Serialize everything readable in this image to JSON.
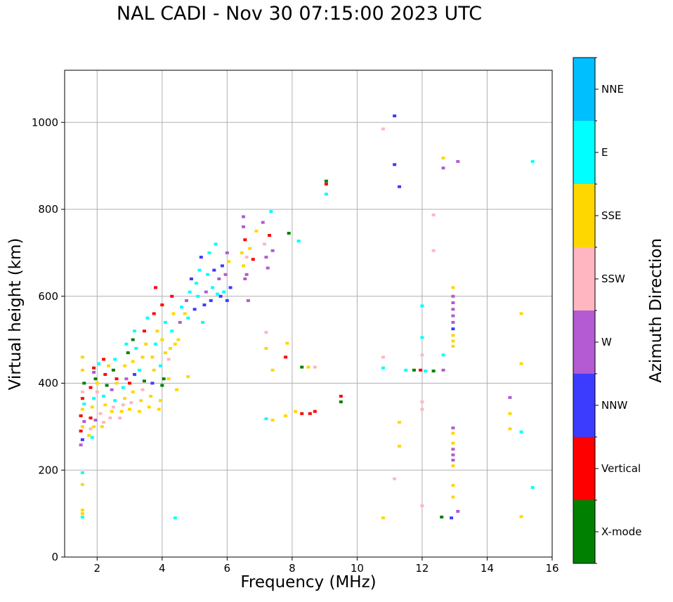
{
  "chart_data": {
    "type": "scatter",
    "title": "NAL CADI - Nov 30 07:15:00 2023 UTC",
    "xlabel": "Frequency (MHz)",
    "ylabel": "Virtual height (km)",
    "xlim": [
      1,
      16
    ],
    "ylim": [
      0,
      1120
    ],
    "xticks": [
      2,
      4,
      6,
      8,
      10,
      12,
      14,
      16
    ],
    "yticks": [
      0,
      200,
      400,
      600,
      800,
      1000
    ],
    "grid": true,
    "colorbar": {
      "label": "Azimuth Direction",
      "categories": [
        "X-mode",
        "Vertical",
        "NNW",
        "W",
        "SSW",
        "SSE",
        "E",
        "NNE"
      ],
      "colors": [
        "#008000",
        "#ff0000",
        "#3c3cff",
        "#b45ad2",
        "#ffb6c1",
        "#ffd700",
        "#00ffff",
        "#00bfff"
      ]
    },
    "points": [
      {
        "x": 1.55,
        "y": 100,
        "c": "SSE"
      },
      {
        "x": 1.55,
        "y": 108,
        "c": "SSE"
      },
      {
        "x": 1.55,
        "y": 92,
        "c": "E"
      },
      {
        "x": 1.55,
        "y": 167,
        "c": "SSE"
      },
      {
        "x": 1.55,
        "y": 194,
        "c": "E"
      },
      {
        "x": 1.5,
        "y": 258,
        "c": "W"
      },
      {
        "x": 1.55,
        "y": 270,
        "c": "NNW"
      },
      {
        "x": 1.5,
        "y": 290,
        "c": "Vertical"
      },
      {
        "x": 1.55,
        "y": 300,
        "c": "SSE"
      },
      {
        "x": 1.6,
        "y": 312,
        "c": "W"
      },
      {
        "x": 1.5,
        "y": 325,
        "c": "Vertical"
      },
      {
        "x": 1.55,
        "y": 340,
        "c": "SSE"
      },
      {
        "x": 1.6,
        "y": 352,
        "c": "E"
      },
      {
        "x": 1.55,
        "y": 365,
        "c": "Vertical"
      },
      {
        "x": 1.55,
        "y": 380,
        "c": "SSW"
      },
      {
        "x": 1.6,
        "y": 400,
        "c": "X-mode"
      },
      {
        "x": 1.55,
        "y": 430,
        "c": "SSE"
      },
      {
        "x": 1.55,
        "y": 460,
        "c": "SSE"
      },
      {
        "x": 1.75,
        "y": 280,
        "c": "SSE"
      },
      {
        "x": 1.8,
        "y": 295,
        "c": "SSW"
      },
      {
        "x": 1.85,
        "y": 275,
        "c": "E"
      },
      {
        "x": 1.9,
        "y": 300,
        "c": "SSE"
      },
      {
        "x": 1.8,
        "y": 320,
        "c": "Vertical"
      },
      {
        "x": 1.95,
        "y": 315,
        "c": "W"
      },
      {
        "x": 1.85,
        "y": 345,
        "c": "SSE"
      },
      {
        "x": 1.9,
        "y": 365,
        "c": "E"
      },
      {
        "x": 1.8,
        "y": 390,
        "c": "Vertical"
      },
      {
        "x": 2.0,
        "y": 400,
        "c": "SSE"
      },
      {
        "x": 1.95,
        "y": 410,
        "c": "X-mode"
      },
      {
        "x": 1.9,
        "y": 435,
        "c": "Vertical"
      },
      {
        "x": 2.05,
        "y": 445,
        "c": "E"
      },
      {
        "x": 1.9,
        "y": 425,
        "c": "W"
      },
      {
        "x": 2.0,
        "y": 380,
        "c": "SSW"
      },
      {
        "x": 2.1,
        "y": 330,
        "c": "SSW"
      },
      {
        "x": 2.15,
        "y": 300,
        "c": "SSE"
      },
      {
        "x": 2.2,
        "y": 310,
        "c": "SSW"
      },
      {
        "x": 2.25,
        "y": 350,
        "c": "SSE"
      },
      {
        "x": 2.2,
        "y": 370,
        "c": "E"
      },
      {
        "x": 2.3,
        "y": 395,
        "c": "X-mode"
      },
      {
        "x": 2.25,
        "y": 420,
        "c": "Vertical"
      },
      {
        "x": 2.35,
        "y": 440,
        "c": "SSE"
      },
      {
        "x": 2.2,
        "y": 455,
        "c": "Vertical"
      },
      {
        "x": 2.4,
        "y": 320,
        "c": "SSW"
      },
      {
        "x": 2.45,
        "y": 335,
        "c": "SSE"
      },
      {
        "x": 2.5,
        "y": 345,
        "c": "SSW"
      },
      {
        "x": 2.55,
        "y": 360,
        "c": "E"
      },
      {
        "x": 2.45,
        "y": 385,
        "c": "W"
      },
      {
        "x": 2.6,
        "y": 400,
        "c": "SSE"
      },
      {
        "x": 2.5,
        "y": 430,
        "c": "X-mode"
      },
      {
        "x": 2.55,
        "y": 455,
        "c": "E"
      },
      {
        "x": 2.6,
        "y": 410,
        "c": "Vertical"
      },
      {
        "x": 2.7,
        "y": 320,
        "c": "SSW"
      },
      {
        "x": 2.75,
        "y": 335,
        "c": "SSE"
      },
      {
        "x": 2.8,
        "y": 350,
        "c": "SSW"
      },
      {
        "x": 2.85,
        "y": 365,
        "c": "SSE"
      },
      {
        "x": 2.8,
        "y": 390,
        "c": "E"
      },
      {
        "x": 2.9,
        "y": 410,
        "c": "W"
      },
      {
        "x": 2.85,
        "y": 440,
        "c": "SSE"
      },
      {
        "x": 2.95,
        "y": 470,
        "c": "X-mode"
      },
      {
        "x": 2.9,
        "y": 490,
        "c": "E"
      },
      {
        "x": 3.0,
        "y": 340,
        "c": "SSE"
      },
      {
        "x": 3.05,
        "y": 355,
        "c": "SSW"
      },
      {
        "x": 3.1,
        "y": 380,
        "c": "SSE"
      },
      {
        "x": 3.0,
        "y": 400,
        "c": "Vertical"
      },
      {
        "x": 3.15,
        "y": 420,
        "c": "NNW"
      },
      {
        "x": 3.1,
        "y": 450,
        "c": "SSE"
      },
      {
        "x": 3.2,
        "y": 480,
        "c": "E"
      },
      {
        "x": 3.1,
        "y": 500,
        "c": "X-mode"
      },
      {
        "x": 3.15,
        "y": 520,
        "c": "E"
      },
      {
        "x": 3.3,
        "y": 335,
        "c": "SSE"
      },
      {
        "x": 3.35,
        "y": 360,
        "c": "SSE"
      },
      {
        "x": 3.4,
        "y": 385,
        "c": "SSW"
      },
      {
        "x": 3.45,
        "y": 405,
        "c": "X-mode"
      },
      {
        "x": 3.3,
        "y": 430,
        "c": "E"
      },
      {
        "x": 3.4,
        "y": 460,
        "c": "SSE"
      },
      {
        "x": 3.5,
        "y": 490,
        "c": "SSE"
      },
      {
        "x": 3.45,
        "y": 520,
        "c": "Vertical"
      },
      {
        "x": 3.55,
        "y": 550,
        "c": "E"
      },
      {
        "x": 3.6,
        "y": 345,
        "c": "SSE"
      },
      {
        "x": 3.65,
        "y": 370,
        "c": "SSE"
      },
      {
        "x": 3.7,
        "y": 400,
        "c": "NNW"
      },
      {
        "x": 3.75,
        "y": 430,
        "c": "SSE"
      },
      {
        "x": 3.7,
        "y": 460,
        "c": "SSE"
      },
      {
        "x": 3.8,
        "y": 490,
        "c": "E"
      },
      {
        "x": 3.85,
        "y": 520,
        "c": "SSE"
      },
      {
        "x": 3.75,
        "y": 560,
        "c": "Vertical"
      },
      {
        "x": 3.8,
        "y": 620,
        "c": "Vertical"
      },
      {
        "x": 3.9,
        "y": 340,
        "c": "SSE"
      },
      {
        "x": 3.95,
        "y": 360,
        "c": "SSE"
      },
      {
        "x": 4.0,
        "y": 395,
        "c": "X-mode"
      },
      {
        "x": 4.05,
        "y": 410,
        "c": "X-mode"
      },
      {
        "x": 3.95,
        "y": 440,
        "c": "E"
      },
      {
        "x": 4.1,
        "y": 470,
        "c": "SSE"
      },
      {
        "x": 4.0,
        "y": 500,
        "c": "SSE"
      },
      {
        "x": 4.1,
        "y": 540,
        "c": "E"
      },
      {
        "x": 4.0,
        "y": 580,
        "c": "Vertical"
      },
      {
        "x": 4.2,
        "y": 455,
        "c": "SSW"
      },
      {
        "x": 4.25,
        "y": 480,
        "c": "SSE"
      },
      {
        "x": 4.3,
        "y": 520,
        "c": "E"
      },
      {
        "x": 4.35,
        "y": 560,
        "c": "SSE"
      },
      {
        "x": 4.3,
        "y": 600,
        "c": "Vertical"
      },
      {
        "x": 4.4,
        "y": 490,
        "c": "SSE"
      },
      {
        "x": 4.5,
        "y": 500,
        "c": "SSE"
      },
      {
        "x": 4.55,
        "y": 540,
        "c": "W"
      },
      {
        "x": 4.6,
        "y": 575,
        "c": "E"
      },
      {
        "x": 4.45,
        "y": 385,
        "c": "SSE"
      },
      {
        "x": 4.2,
        "y": 410,
        "c": "SSE"
      },
      {
        "x": 4.4,
        "y": 90,
        "c": "E"
      },
      {
        "x": 4.7,
        "y": 560,
        "c": "SSE"
      },
      {
        "x": 4.8,
        "y": 550,
        "c": "E"
      },
      {
        "x": 4.75,
        "y": 590,
        "c": "W"
      },
      {
        "x": 4.85,
        "y": 610,
        "c": "E"
      },
      {
        "x": 4.9,
        "y": 640,
        "c": "NNW"
      },
      {
        "x": 4.8,
        "y": 415,
        "c": "SSE"
      },
      {
        "x": 5.0,
        "y": 570,
        "c": "NNW"
      },
      {
        "x": 5.1,
        "y": 600,
        "c": "E"
      },
      {
        "x": 5.05,
        "y": 630,
        "c": "E"
      },
      {
        "x": 5.15,
        "y": 660,
        "c": "E"
      },
      {
        "x": 5.2,
        "y": 690,
        "c": "NNW"
      },
      {
        "x": 5.25,
        "y": 540,
        "c": "E"
      },
      {
        "x": 5.3,
        "y": 580,
        "c": "NNW"
      },
      {
        "x": 5.35,
        "y": 610,
        "c": "W"
      },
      {
        "x": 5.4,
        "y": 650,
        "c": "E"
      },
      {
        "x": 5.45,
        "y": 700,
        "c": "E"
      },
      {
        "x": 5.5,
        "y": 590,
        "c": "NNW"
      },
      {
        "x": 5.55,
        "y": 620,
        "c": "E"
      },
      {
        "x": 5.6,
        "y": 660,
        "c": "NNW"
      },
      {
        "x": 5.65,
        "y": 720,
        "c": "E"
      },
      {
        "x": 5.7,
        "y": 605,
        "c": "E"
      },
      {
        "x": 5.75,
        "y": 640,
        "c": "W"
      },
      {
        "x": 5.8,
        "y": 600,
        "c": "NNW"
      },
      {
        "x": 5.85,
        "y": 670,
        "c": "NNW"
      },
      {
        "x": 5.9,
        "y": 610,
        "c": "E"
      },
      {
        "x": 6.0,
        "y": 590,
        "c": "NNW"
      },
      {
        "x": 5.95,
        "y": 650,
        "c": "W"
      },
      {
        "x": 6.0,
        "y": 700,
        "c": "W"
      },
      {
        "x": 6.05,
        "y": 680,
        "c": "SSE"
      },
      {
        "x": 6.1,
        "y": 620,
        "c": "NNW"
      },
      {
        "x": 6.45,
        "y": 700,
        "c": "SSE"
      },
      {
        "x": 6.5,
        "y": 670,
        "c": "SSE"
      },
      {
        "x": 6.55,
        "y": 640,
        "c": "W"
      },
      {
        "x": 6.5,
        "y": 760,
        "c": "W"
      },
      {
        "x": 6.55,
        "y": 730,
        "c": "Vertical"
      },
      {
        "x": 6.6,
        "y": 690,
        "c": "SSW"
      },
      {
        "x": 6.6,
        "y": 650,
        "c": "W"
      },
      {
        "x": 6.65,
        "y": 590,
        "c": "W"
      },
      {
        "x": 6.5,
        "y": 783,
        "c": "W"
      },
      {
        "x": 6.7,
        "y": 710,
        "c": "SSE"
      },
      {
        "x": 6.8,
        "y": 685,
        "c": "Vertical"
      },
      {
        "x": 6.9,
        "y": 750,
        "c": "SSE"
      },
      {
        "x": 7.1,
        "y": 770,
        "c": "W"
      },
      {
        "x": 7.15,
        "y": 720,
        "c": "SSW"
      },
      {
        "x": 7.2,
        "y": 690,
        "c": "W"
      },
      {
        "x": 7.25,
        "y": 665,
        "c": "W"
      },
      {
        "x": 7.3,
        "y": 740,
        "c": "Vertical"
      },
      {
        "x": 7.4,
        "y": 705,
        "c": "W"
      },
      {
        "x": 7.35,
        "y": 795,
        "c": "E"
      },
      {
        "x": 7.9,
        "y": 745,
        "c": "X-mode"
      },
      {
        "x": 8.2,
        "y": 727,
        "c": "E"
      },
      {
        "x": 7.2,
        "y": 517,
        "c": "SSW"
      },
      {
        "x": 7.2,
        "y": 480,
        "c": "SSE"
      },
      {
        "x": 7.4,
        "y": 430,
        "c": "SSE"
      },
      {
        "x": 7.85,
        "y": 492,
        "c": "SSE"
      },
      {
        "x": 7.8,
        "y": 460,
        "c": "Vertical"
      },
      {
        "x": 7.2,
        "y": 318,
        "c": "E"
      },
      {
        "x": 7.4,
        "y": 315,
        "c": "SSE"
      },
      {
        "x": 7.8,
        "y": 325,
        "c": "SSE"
      },
      {
        "x": 8.1,
        "y": 335,
        "c": "SSE"
      },
      {
        "x": 8.3,
        "y": 330,
        "c": "Vertical"
      },
      {
        "x": 8.55,
        "y": 330,
        "c": "Vertical"
      },
      {
        "x": 8.7,
        "y": 335,
        "c": "Vertical"
      },
      {
        "x": 8.3,
        "y": 437,
        "c": "X-mode"
      },
      {
        "x": 8.5,
        "y": 437,
        "c": "SSE"
      },
      {
        "x": 8.7,
        "y": 437,
        "c": "SSW"
      },
      {
        "x": 9.05,
        "y": 865,
        "c": "X-mode"
      },
      {
        "x": 9.05,
        "y": 858,
        "c": "Vertical"
      },
      {
        "x": 9.05,
        "y": 835,
        "c": "E"
      },
      {
        "x": 9.5,
        "y": 370,
        "c": "Vertical"
      },
      {
        "x": 9.5,
        "y": 357,
        "c": "X-mode"
      },
      {
        "x": 10.8,
        "y": 985,
        "c": "SSW"
      },
      {
        "x": 10.8,
        "y": 460,
        "c": "SSW"
      },
      {
        "x": 10.8,
        "y": 435,
        "c": "E"
      },
      {
        "x": 10.8,
        "y": 90,
        "c": "SSE"
      },
      {
        "x": 11.15,
        "y": 1015,
        "c": "NNW"
      },
      {
        "x": 11.15,
        "y": 903,
        "c": "NNW"
      },
      {
        "x": 11.3,
        "y": 852,
        "c": "NNW"
      },
      {
        "x": 11.5,
        "y": 430,
        "c": "E"
      },
      {
        "x": 11.75,
        "y": 430,
        "c": "X-mode"
      },
      {
        "x": 11.95,
        "y": 430,
        "c": "Vertical"
      },
      {
        "x": 12.1,
        "y": 428,
        "c": "E"
      },
      {
        "x": 11.3,
        "y": 310,
        "c": "SSE"
      },
      {
        "x": 11.3,
        "y": 255,
        "c": "SSE"
      },
      {
        "x": 11.15,
        "y": 180,
        "c": "SSW"
      },
      {
        "x": 12.0,
        "y": 578,
        "c": "E"
      },
      {
        "x": 12.0,
        "y": 505,
        "c": "E"
      },
      {
        "x": 12.0,
        "y": 465,
        "c": "SSW"
      },
      {
        "x": 12.0,
        "y": 357,
        "c": "SSW"
      },
      {
        "x": 12.0,
        "y": 340,
        "c": "SSW"
      },
      {
        "x": 12.0,
        "y": 118,
        "c": "SSW"
      },
      {
        "x": 12.35,
        "y": 787,
        "c": "SSW"
      },
      {
        "x": 12.35,
        "y": 705,
        "c": "SSW"
      },
      {
        "x": 12.35,
        "y": 428,
        "c": "X-mode"
      },
      {
        "x": 12.65,
        "y": 430,
        "c": "W"
      },
      {
        "x": 12.65,
        "y": 465,
        "c": "E"
      },
      {
        "x": 12.65,
        "y": 918,
        "c": "SSE"
      },
      {
        "x": 12.65,
        "y": 895,
        "c": "W"
      },
      {
        "x": 13.1,
        "y": 910,
        "c": "W"
      },
      {
        "x": 12.6,
        "y": 92,
        "c": "X-mode"
      },
      {
        "x": 12.9,
        "y": 90,
        "c": "NNW"
      },
      {
        "x": 13.1,
        "y": 105,
        "c": "W"
      },
      {
        "x": 12.95,
        "y": 620,
        "c": "SSE"
      },
      {
        "x": 12.95,
        "y": 600,
        "c": "W"
      },
      {
        "x": 12.95,
        "y": 585,
        "c": "W"
      },
      {
        "x": 12.95,
        "y": 570,
        "c": "W"
      },
      {
        "x": 12.95,
        "y": 555,
        "c": "W"
      },
      {
        "x": 12.95,
        "y": 540,
        "c": "W"
      },
      {
        "x": 12.95,
        "y": 525,
        "c": "NNW"
      },
      {
        "x": 12.95,
        "y": 510,
        "c": "SSE"
      },
      {
        "x": 12.95,
        "y": 497,
        "c": "SSE"
      },
      {
        "x": 12.95,
        "y": 485,
        "c": "SSE"
      },
      {
        "x": 12.95,
        "y": 297,
        "c": "W"
      },
      {
        "x": 12.95,
        "y": 285,
        "c": "SSE"
      },
      {
        "x": 12.95,
        "y": 262,
        "c": "SSE"
      },
      {
        "x": 12.95,
        "y": 248,
        "c": "W"
      },
      {
        "x": 12.95,
        "y": 235,
        "c": "W"
      },
      {
        "x": 12.95,
        "y": 223,
        "c": "W"
      },
      {
        "x": 12.95,
        "y": 210,
        "c": "SSE"
      },
      {
        "x": 12.95,
        "y": 165,
        "c": "SSE"
      },
      {
        "x": 12.95,
        "y": 138,
        "c": "SSE"
      },
      {
        "x": 14.7,
        "y": 367,
        "c": "W"
      },
      {
        "x": 14.7,
        "y": 330,
        "c": "SSE"
      },
      {
        "x": 14.7,
        "y": 295,
        "c": "SSE"
      },
      {
        "x": 15.05,
        "y": 560,
        "c": "SSE"
      },
      {
        "x": 15.05,
        "y": 445,
        "c": "SSE"
      },
      {
        "x": 15.05,
        "y": 288,
        "c": "E"
      },
      {
        "x": 15.05,
        "y": 93,
        "c": "SSE"
      },
      {
        "x": 15.4,
        "y": 910,
        "c": "E"
      },
      {
        "x": 15.4,
        "y": 160,
        "c": "E"
      }
    ]
  }
}
